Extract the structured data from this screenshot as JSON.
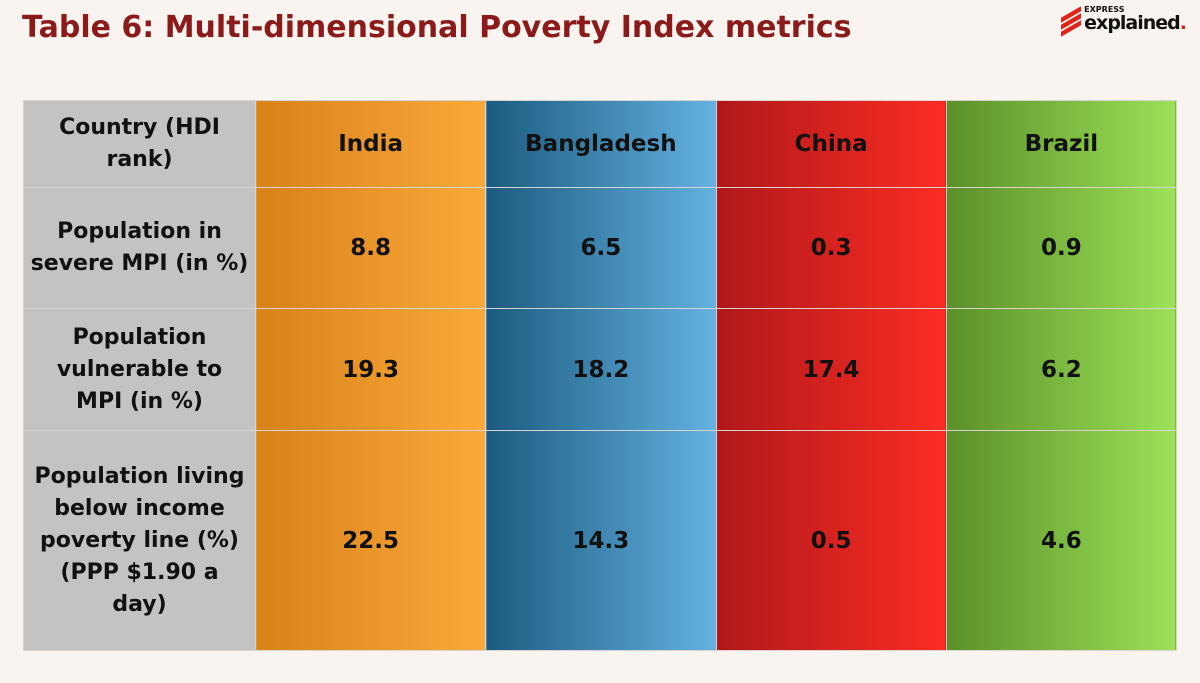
{
  "title": "Table 6: Multi-dimensional Poverty Index metrics",
  "logo": {
    "top": "EXPRESS",
    "main": "explained",
    "dot": "."
  },
  "colors": {
    "title": "#8b1a1a",
    "India": "#f0962a",
    "Bangladesh": "#3f88b3",
    "China": "#d8221f",
    "Brazil": "#7bbf40",
    "label_column": "#c3c3c3"
  },
  "chart_data": {
    "type": "table",
    "title": "Table 6: Multi-dimensional Poverty Index metrics",
    "header_label": "Country (HDI rank)",
    "columns": [
      "India",
      "Bangladesh",
      "China",
      "Brazil"
    ],
    "rows": [
      {
        "label": "Population in severe MPI (in %)",
        "values": [
          "8.8",
          "6.5",
          "0.3",
          "0.9"
        ]
      },
      {
        "label": "Population vulnerable to MPI (in %)",
        "values": [
          "19.3",
          "18.2",
          "17.4",
          "6.2"
        ]
      },
      {
        "label": "Population living below income poverty line (%) (PPP $1.90 a day)",
        "values": [
          "22.5",
          "14.3",
          "0.5",
          "4.6"
        ]
      }
    ]
  }
}
